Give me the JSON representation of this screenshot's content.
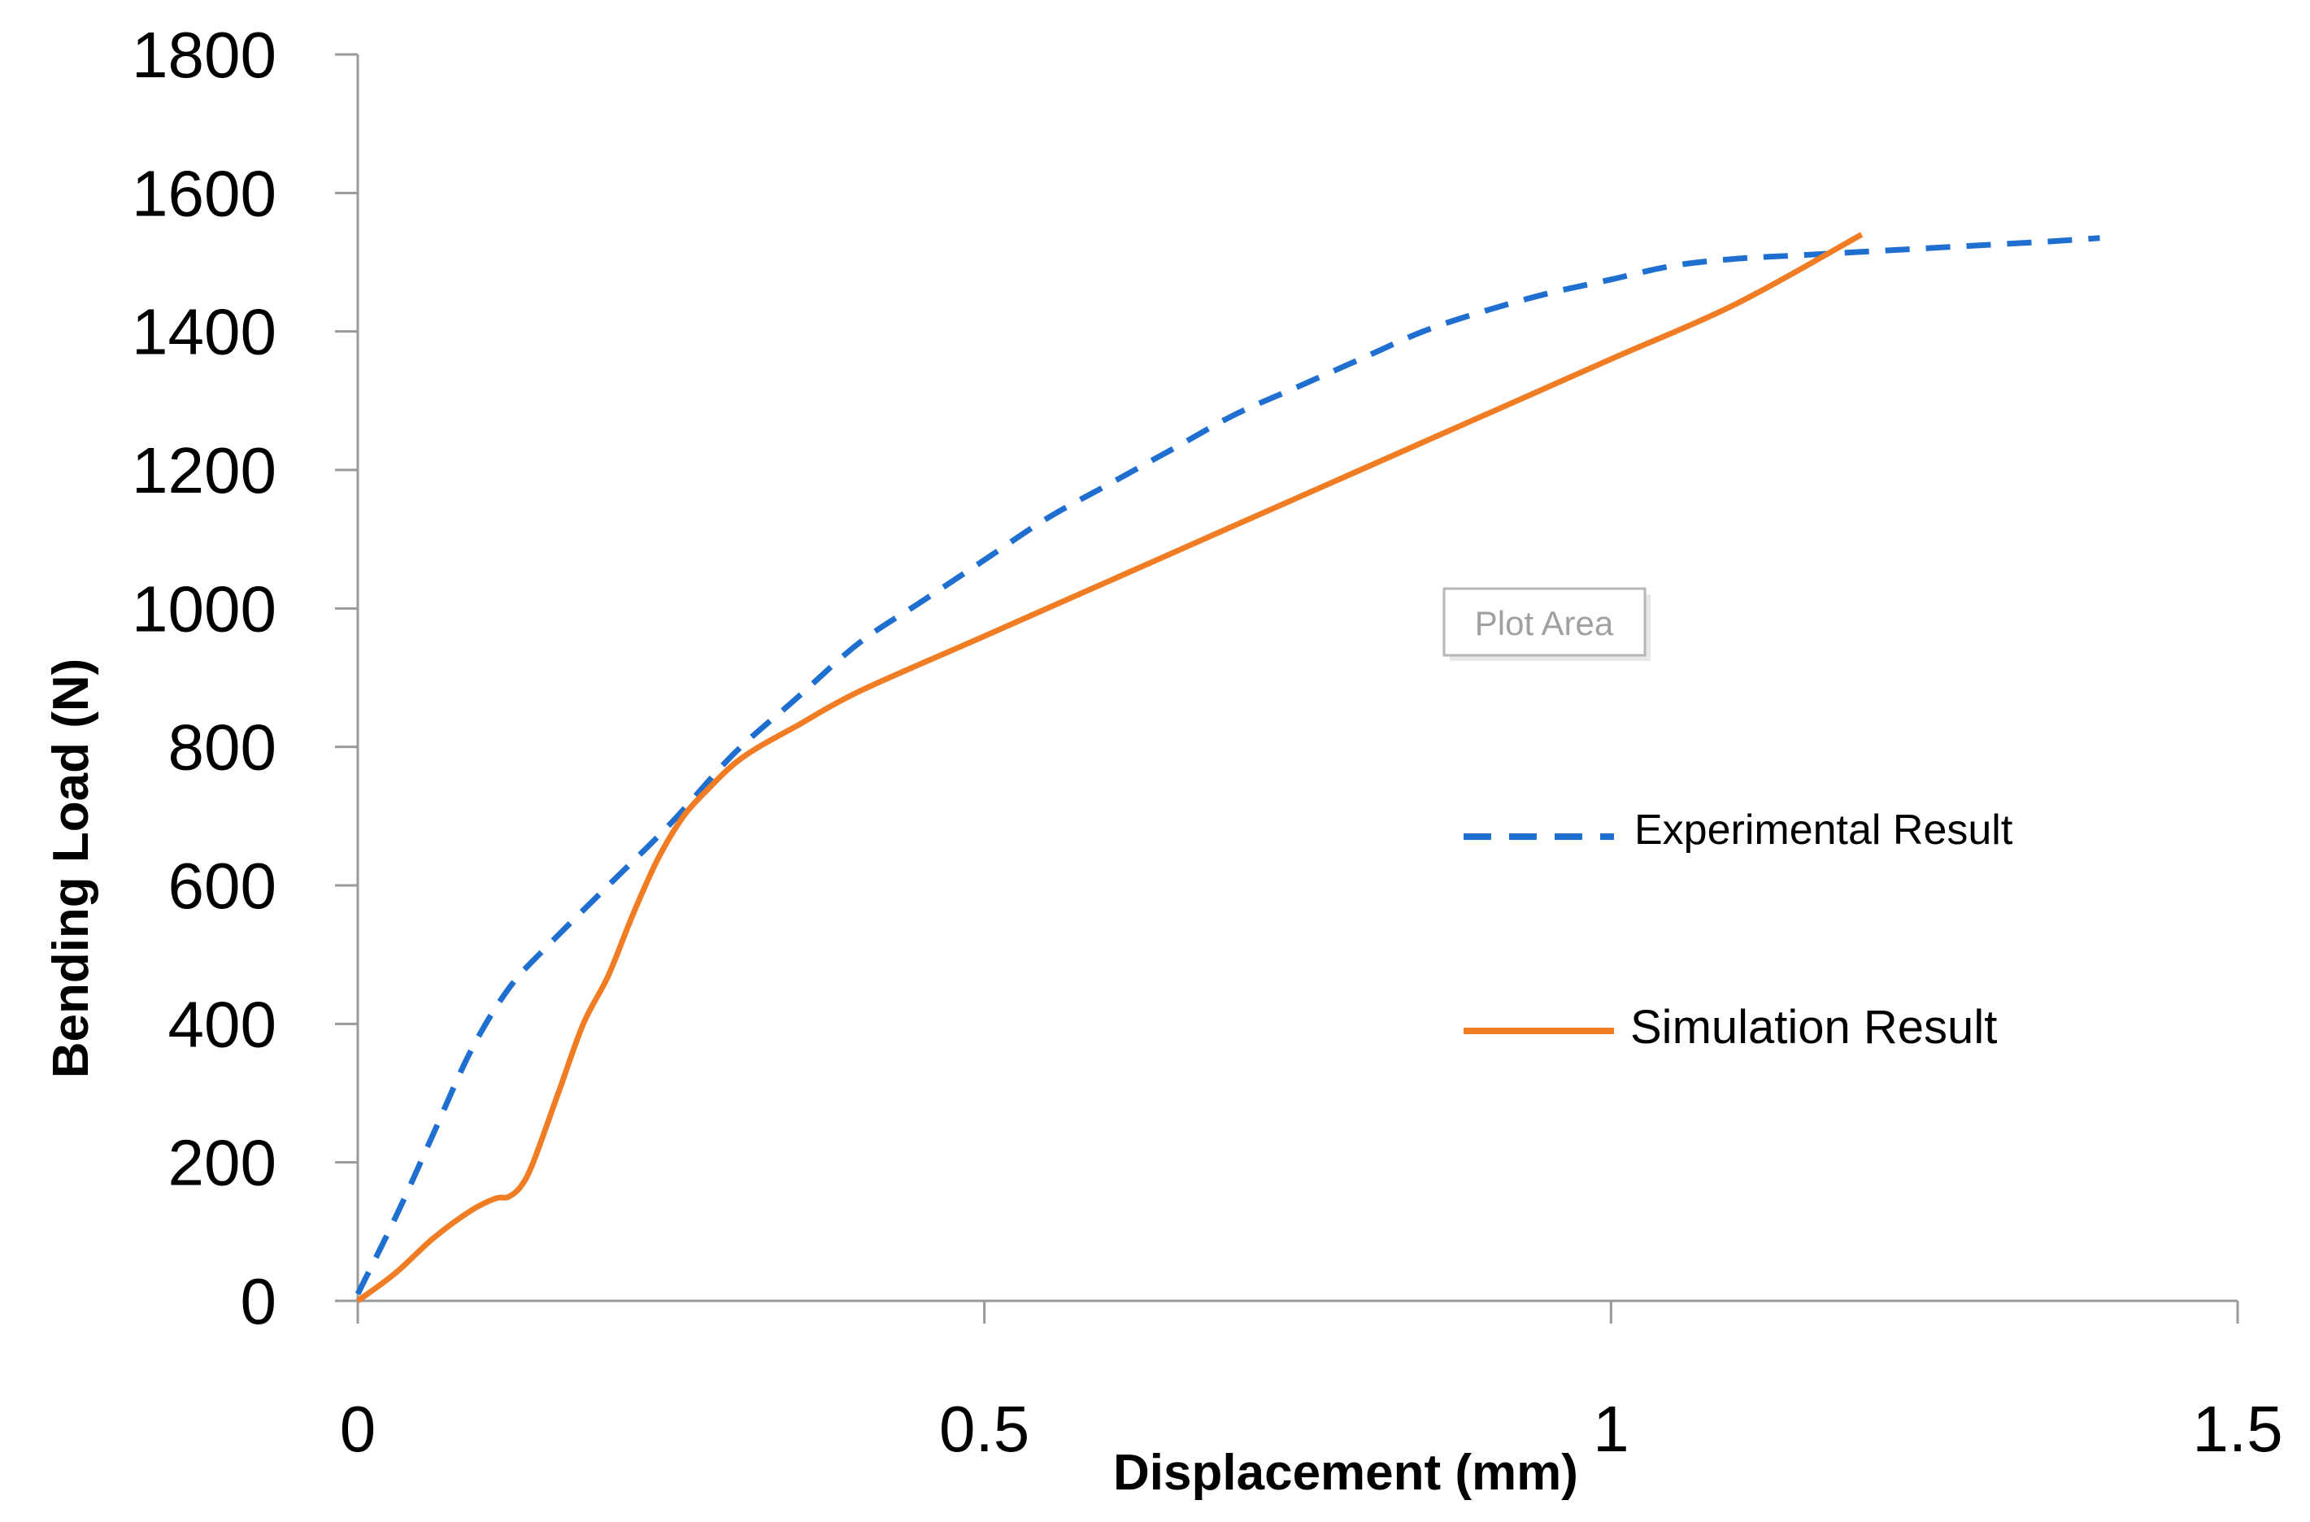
{
  "chart_data": {
    "type": "line",
    "title": "",
    "xlabel": "Displacement (mm)",
    "ylabel": "Bending Load (N)",
    "xlim": [
      0,
      1.5
    ],
    "ylim": [
      0,
      1800
    ],
    "x_ticks": [
      0,
      0.5,
      1,
      1.5
    ],
    "x_tick_labels": [
      "0",
      "0.5",
      "1",
      "1.5"
    ],
    "y_ticks": [
      0,
      200,
      400,
      600,
      800,
      1000,
      1200,
      1400,
      1600,
      1800
    ],
    "y_tick_labels": [
      "0",
      "200",
      "400",
      "600",
      "800",
      "1000",
      "1200",
      "1400",
      "1600",
      "1800"
    ],
    "grid": false,
    "legend_position": "right",
    "tooltip": "Plot Area",
    "series": [
      {
        "name": "Experimental Result",
        "color": "#1f6fd1",
        "style": "dashed",
        "x": [
          0,
          0.03,
          0.06,
          0.09,
          0.12,
          0.15,
          0.2,
          0.25,
          0.3,
          0.35,
          0.4,
          0.45,
          0.5,
          0.55,
          0.6,
          0.65,
          0.7,
          0.75,
          0.8,
          0.85,
          0.9,
          0.95,
          1.0,
          1.05,
          1.1,
          1.15,
          1.2,
          1.25,
          1.3,
          1.35,
          1.39
        ],
        "y": [
          10,
          120,
          240,
          360,
          450,
          510,
          600,
          690,
          790,
          870,
          950,
          1010,
          1070,
          1130,
          1180,
          1230,
          1280,
          1320,
          1360,
          1400,
          1430,
          1455,
          1475,
          1495,
          1505,
          1510,
          1515,
          1520,
          1525,
          1530,
          1535
        ]
      },
      {
        "name": "Simulation Result",
        "color": "#f07d24",
        "style": "solid",
        "x": [
          0,
          0.03,
          0.06,
          0.09,
          0.11,
          0.12,
          0.13,
          0.14,
          0.16,
          0.18,
          0.2,
          0.22,
          0.24,
          0.26,
          0.28,
          0.3,
          0.32,
          0.35,
          0.4,
          0.5,
          0.6,
          0.7,
          0.8,
          0.9,
          1.0,
          1.1,
          1.2
        ],
        "y": [
          0,
          40,
          90,
          130,
          148,
          150,
          165,
          200,
          300,
          400,
          470,
          560,
          640,
          700,
          740,
          775,
          800,
          830,
          880,
          960,
          1040,
          1120,
          1200,
          1280,
          1360,
          1440,
          1540
        ]
      }
    ]
  }
}
